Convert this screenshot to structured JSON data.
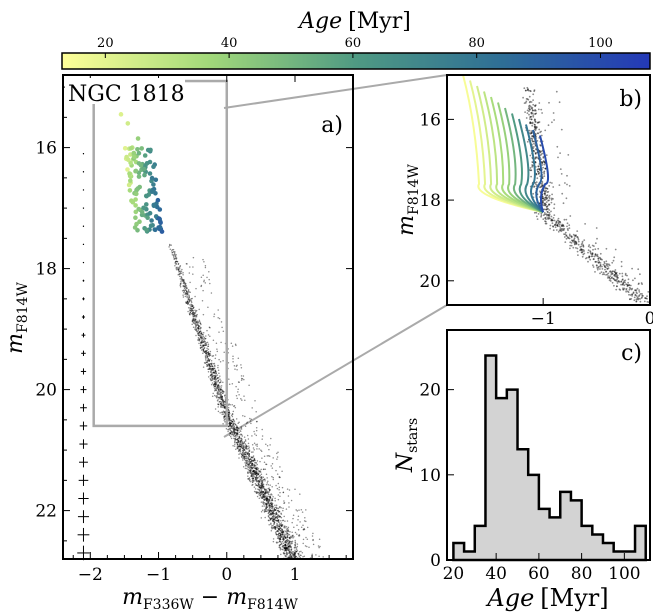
{
  "colorbar": {
    "label_var": "Age",
    "label_unit": "[Myr]",
    "ticks": [
      20,
      40,
      60,
      80,
      100
    ],
    "range": [
      13,
      108
    ],
    "colors": [
      "#ffff99",
      "#a2d97a",
      "#4f9a83",
      "#2e6e96",
      "#2439b8"
    ]
  },
  "chart_data": [
    {
      "panel": "a)",
      "type": "scatter",
      "title": "NGC 1818",
      "xlabel_parts": [
        "m",
        "F336W",
        " − ",
        "m",
        "F814W"
      ],
      "ylabel_parts": [
        "m",
        "F814W"
      ],
      "xlim": [
        -2.4,
        1.85
      ],
      "ylim": [
        22.8,
        14.8
      ],
      "xticks": [
        -2,
        -1,
        0,
        1
      ],
      "yticks": [
        16,
        18,
        20,
        22
      ],
      "zoom_box": {
        "x": [
          -1.95,
          0.0
        ],
        "y": [
          14.9,
          20.6
        ]
      },
      "upper_ms_colored_stars": {
        "x_range": [
          -1.55,
          -0.85
        ],
        "y_range": [
          15.4,
          17.4
        ],
        "age_range": [
          15,
          105
        ]
      },
      "error_bars": {
        "x": -2.1,
        "y_range": [
          16.1,
          22.7
        ]
      }
    },
    {
      "panel": "b)",
      "type": "line",
      "xlim": [
        -1.9,
        0.0
      ],
      "ylim": [
        20.6,
        14.9
      ],
      "xticks": [
        -1,
        0
      ],
      "yticks": [
        16,
        18,
        20
      ],
      "ylabel_parts": [
        "m",
        "F814W"
      ],
      "isochrone_ages": [
        15,
        20,
        25,
        30,
        35,
        40,
        50,
        60,
        70,
        80,
        90,
        100
      ]
    },
    {
      "panel": "c)",
      "type": "histogram",
      "xlabel_var": "Age",
      "xlabel_unit": "[Myr]",
      "ylabel_parts": [
        "N",
        "stars"
      ],
      "xlim": [
        17,
        112
      ],
      "ylim": [
        0,
        27
      ],
      "xticks": [
        20,
        40,
        60,
        80,
        100
      ],
      "yticks": [
        0,
        10,
        20
      ],
      "bin_edges": [
        20,
        25,
        30,
        35,
        40,
        45,
        50,
        55,
        60,
        65,
        70,
        75,
        80,
        85,
        90,
        95,
        100,
        105,
        110
      ],
      "counts": [
        2,
        1,
        4,
        24,
        19,
        20,
        13,
        10,
        6,
        5,
        8,
        7,
        4,
        3,
        2,
        1,
        1,
        4
      ]
    }
  ]
}
